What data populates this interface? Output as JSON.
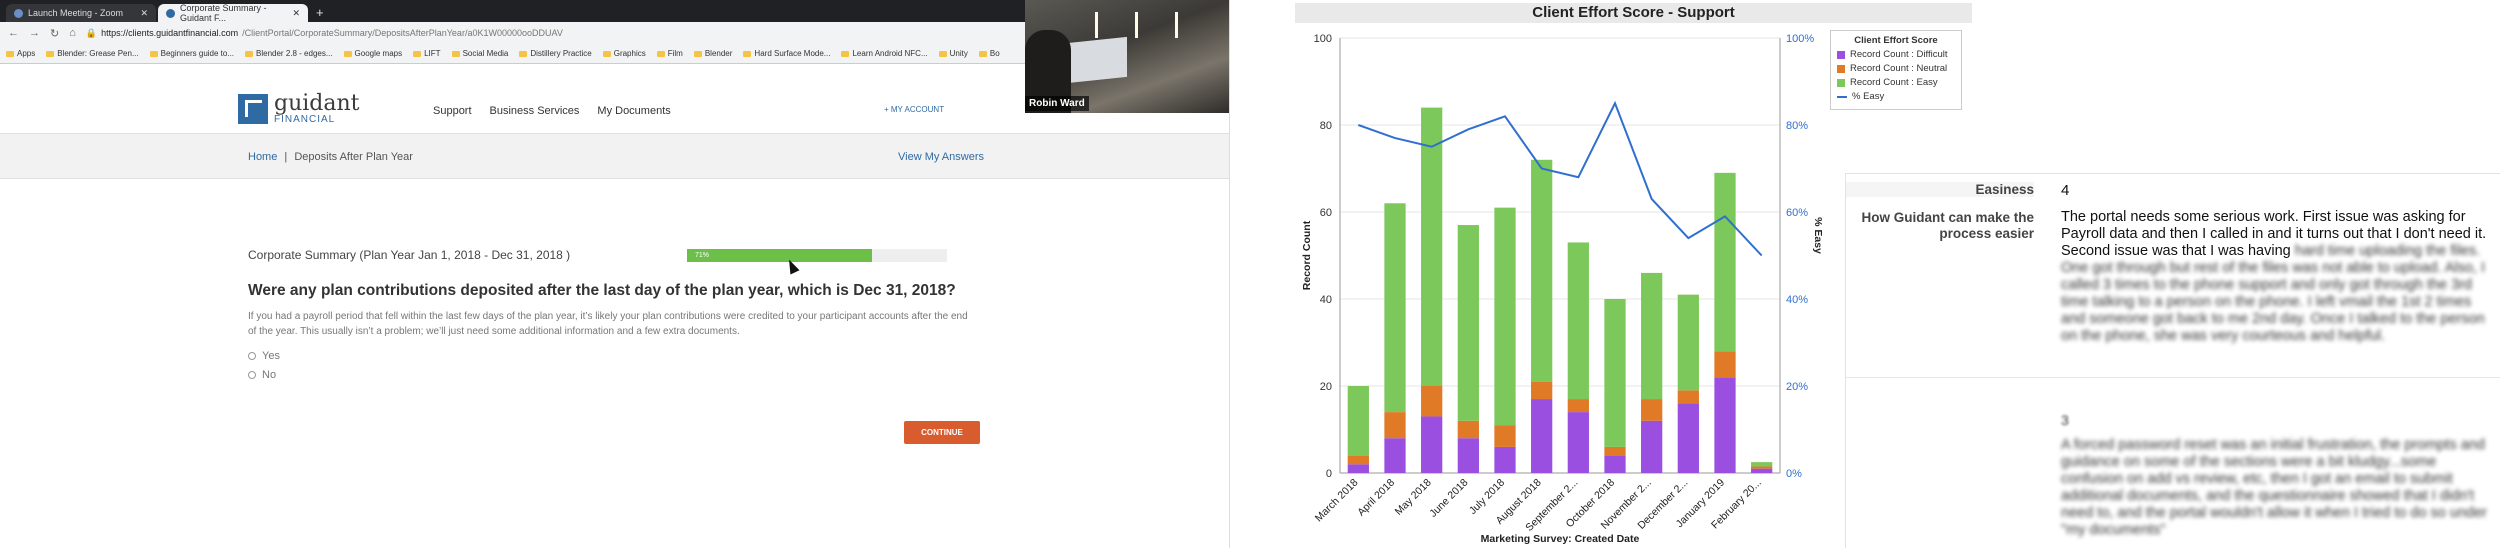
{
  "browser": {
    "tabs": [
      {
        "label": "Launch Meeting - Zoom",
        "active": false
      },
      {
        "label": "Corporate Summary - Guidant F...",
        "active": true
      }
    ],
    "new_tab": "+",
    "url_host": "https://clients.guidantfinancial.com",
    "url_path": "/ClientPortal/CorporateSummary/DepositsAfterPlanYear/a0K1W00000ooDDUAV",
    "bookmarks": [
      "Apps",
      "Blender: Grease Pen...",
      "Beginners guide to...",
      "Blender 2.8 - edges...",
      "Google maps",
      "LIFT",
      "Social Media",
      "Distillery Practice",
      "Graphics",
      "Film",
      "Blender",
      "Hard Surface Mode...",
      "Learn Android NFC...",
      "Unity",
      "Bo"
    ]
  },
  "site": {
    "logo_name": "guidant",
    "logo_sub": "FINANCIAL",
    "nav": [
      "Support",
      "Business Services",
      "My Documents"
    ],
    "my_account": "+ MY ACCOUNT",
    "breadcrumb_home": "Home",
    "breadcrumb_sep": "|",
    "breadcrumb_current": "Deposits After Plan Year",
    "view_answers": "View My Answers",
    "summary": "Corporate Summary (Plan Year Jan 1, 2018 - Dec 31, 2018 )",
    "progress_label": "71%",
    "progress_value": 0.71,
    "question": "Were any plan contributions deposited after the last day of the plan year, which is Dec 31, 2018?",
    "explanation": "If you had a payroll period that fell within the last few days of the plan year, it’s likely your plan contributions were credited to your participant accounts after the end of the year. This usually isn’t a problem; we’ll just need some additional information and a few extra documents.",
    "option_yes": "Yes",
    "option_no": "No",
    "continue": "CONTINUE"
  },
  "video": {
    "name": "Robin Ward"
  },
  "chart_title": "Client Effort Score - Support",
  "chart_data": {
    "type": "bar",
    "stacked": true,
    "title": "Client Effort Score - Support",
    "xlabel": "Marketing Survey: Created Date",
    "ylabel": "Record Count",
    "y2label": "% Easy",
    "ylim": [
      0,
      100
    ],
    "y2lim": [
      0,
      100
    ],
    "yticks": [
      0,
      20,
      40,
      60,
      80,
      100
    ],
    "y2ticks": [
      "0%",
      "20%",
      "40%",
      "60%",
      "80%",
      "100%"
    ],
    "categories": [
      "March 2018",
      "April 2018",
      "May 2018",
      "June 2018",
      "July 2018",
      "August 2018",
      "September 2...",
      "October 2018",
      "November 2...",
      "December 2...",
      "January 2019",
      "February 20..."
    ],
    "series": [
      {
        "name": "Record Count : Difficult",
        "color": "#9a4fe0",
        "values": [
          2,
          8,
          13,
          8,
          6,
          17,
          14,
          4,
          12,
          16,
          22,
          1
        ]
      },
      {
        "name": "Record Count : Neutral",
        "color": "#e07a26",
        "values": [
          2,
          6,
          7,
          4,
          5,
          4,
          3,
          2,
          5,
          3,
          6,
          0.5
        ]
      },
      {
        "name": "Record Count : Easy",
        "color": "#7cc85b",
        "values": [
          16,
          48,
          64,
          45,
          50,
          51,
          36,
          34,
          29,
          22,
          41,
          1
        ]
      },
      {
        "name": "% Easy",
        "color": "#2f6fd0",
        "axis": "y2",
        "values": [
          80,
          77,
          75,
          79,
          82,
          70,
          68,
          85,
          63,
          54,
          59,
          50
        ]
      }
    ],
    "legend_title": "Client Effort Score",
    "legend_position": "top-right"
  },
  "feedback": {
    "rating_label": "Easiness",
    "rating_value": "4",
    "how_label": "How Guidant can make the process easier",
    "response_1_visible": "The portal needs some serious work. First issue was asking for Payroll data and then I called in and it turns out that I don't need it. Second issue was that I was having",
    "response_1_blurred": "hard time uploading the files. One got through but rest of the files was not able to upload. Also, I called 3 times to the phone support and only got through the 3rd time talking to a person on the phone. I left vmail the 1st 2 times and someone got back to me 2nd day. Once I talked to the person on the phone, she was very courteous and helpful.",
    "rating_value_2": "3",
    "response_2_blurred": "A forced password reset was an initial frustration, the prompts and guidance on some of the sections were a bit kludgy...some confusion on add vs review, etc, then I got an email to submit additional documents, and the questionnaire showed that I didn't need to, and the portal wouldn't allow it when I tried to do so under \"my documents\""
  }
}
